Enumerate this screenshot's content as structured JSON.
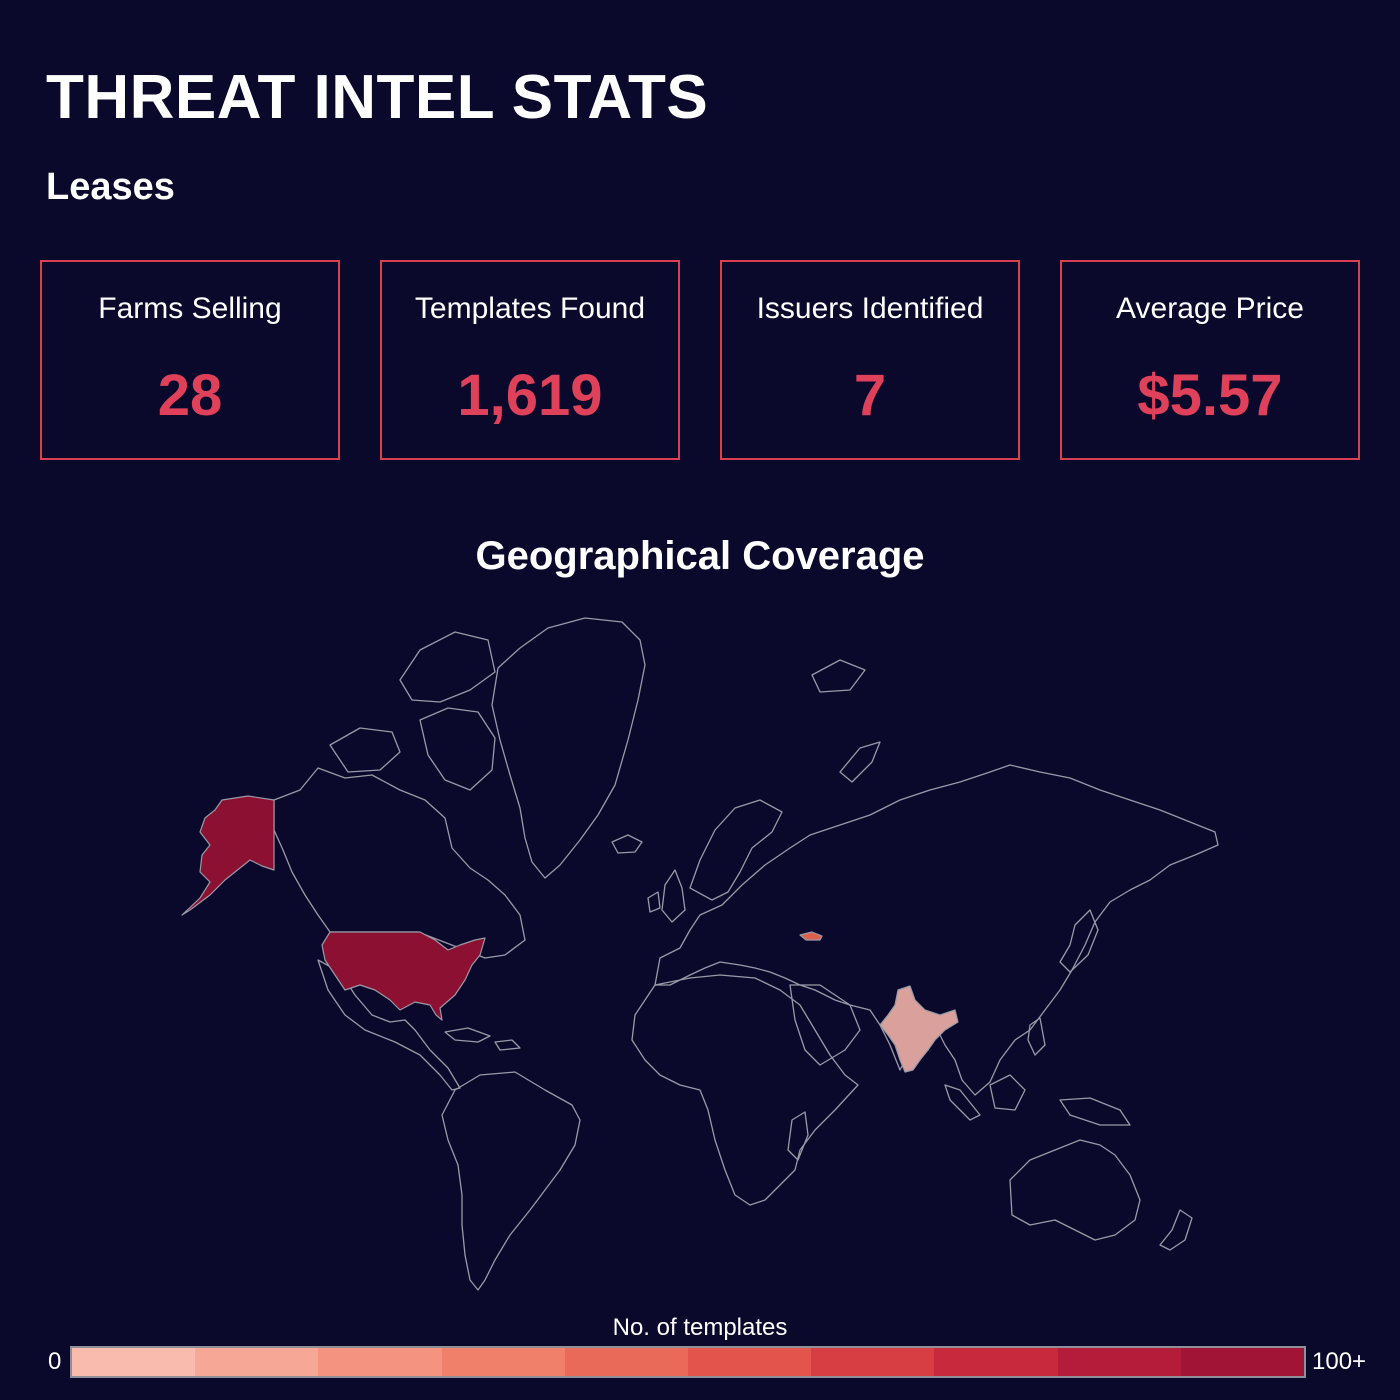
{
  "page_title": "THREAT INTEL STATS",
  "section_title": "Leases",
  "stats": [
    {
      "label": "Farms Selling",
      "value": "28"
    },
    {
      "label": "Templates Found",
      "value": "1,619"
    },
    {
      "label": "Issuers Identified",
      "value": "7"
    },
    {
      "label": "Average Price",
      "value": "$5.57"
    }
  ],
  "map": {
    "title": "Geographical Coverage",
    "highlighted_regions": [
      {
        "name": "Alaska",
        "color": "#8b1032"
      },
      {
        "name": "United States",
        "color": "#8b1032"
      },
      {
        "name": "India",
        "color": "#d9a09c"
      },
      {
        "name": "Georgia",
        "color": "#e0604f"
      }
    ]
  },
  "legend": {
    "title": "No. of templates",
    "min_label": "0",
    "max_label": "100+",
    "colors": [
      "#f8bbad",
      "#f6a796",
      "#f49480",
      "#f1806b",
      "#ea6a5a",
      "#e2544c",
      "#d63e44",
      "#c8293d",
      "#b51c3a",
      "#a11436"
    ]
  },
  "colors": {
    "background": "#0a092c",
    "accent": "#e0415a",
    "border": "#d6404f"
  }
}
